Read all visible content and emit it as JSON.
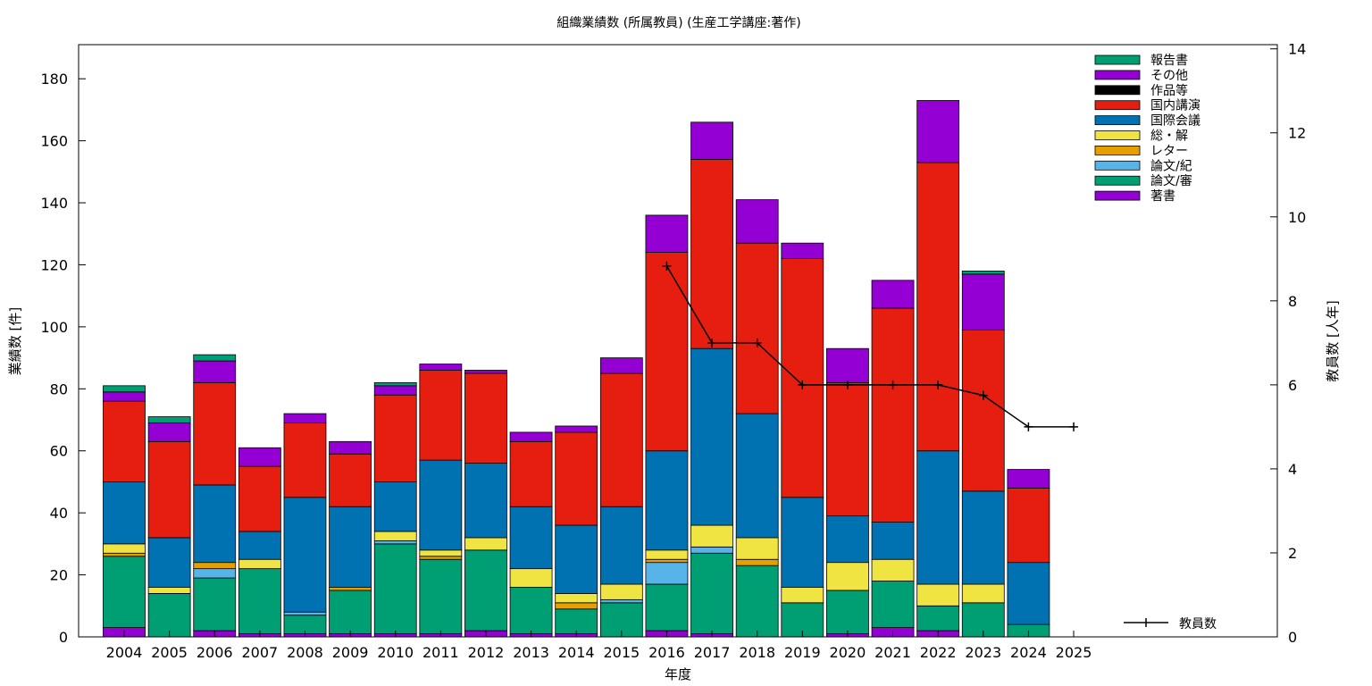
{
  "chart_data": {
    "type": "bar",
    "stacked": true,
    "title": "組織業績数 (所属教員) (生産工学講座:著作)",
    "xlabel": "年度",
    "ylabel": "業績数 [件]",
    "y2label": "教員数 [人年]",
    "ylim": [
      0,
      191
    ],
    "y2lim": [
      0,
      14.1
    ],
    "yticks": [
      0,
      20,
      40,
      60,
      80,
      100,
      120,
      140,
      160,
      180
    ],
    "y2ticks": [
      0,
      2,
      4,
      6,
      8,
      10,
      12,
      14
    ],
    "categories": [
      "2004",
      "2005",
      "2006",
      "2007",
      "2008",
      "2009",
      "2010",
      "2011",
      "2012",
      "2013",
      "2014",
      "2015",
      "2016",
      "2017",
      "2018",
      "2019",
      "2020",
      "2021",
      "2022",
      "2023",
      "2024",
      "2025"
    ],
    "legend_position": "top-right",
    "series": [
      {
        "name": "著書",
        "color": "#9400d3",
        "values": [
          3,
          0,
          2,
          1,
          1,
          1,
          1,
          1,
          2,
          1,
          1,
          0,
          2,
          1,
          0,
          0,
          1,
          3,
          2,
          0,
          0,
          0
        ]
      },
      {
        "name": "論文/審",
        "color": "#009e73",
        "values": [
          23,
          14,
          17,
          21,
          6,
          14,
          29,
          24,
          26,
          15,
          8,
          11,
          15,
          26,
          23,
          11,
          14,
          15,
          8,
          11,
          4,
          0
        ]
      },
      {
        "name": "論文/紀",
        "color": "#56b4e9",
        "values": [
          0,
          0,
          3,
          0,
          1,
          0,
          1,
          0,
          0,
          0,
          0,
          1,
          7,
          2,
          0,
          0,
          0,
          0,
          0,
          0,
          0,
          0
        ]
      },
      {
        "name": "レター",
        "color": "#e69f00",
        "values": [
          1,
          0,
          2,
          0,
          0,
          1,
          0,
          1,
          0,
          0,
          2,
          0,
          1,
          0,
          2,
          0,
          0,
          0,
          0,
          0,
          0,
          0
        ]
      },
      {
        "name": "総・解",
        "color": "#f0e442",
        "values": [
          3,
          2,
          0,
          3,
          0,
          0,
          3,
          2,
          4,
          6,
          3,
          5,
          3,
          7,
          7,
          5,
          9,
          7,
          7,
          6,
          0,
          0
        ]
      },
      {
        "name": "国際会議",
        "color": "#0072b2",
        "values": [
          20,
          16,
          25,
          9,
          37,
          26,
          16,
          29,
          24,
          20,
          22,
          25,
          32,
          57,
          40,
          29,
          15,
          12,
          43,
          30,
          20,
          0
        ]
      },
      {
        "name": "国内講演",
        "color": "#e51e10",
        "values": [
          26,
          31,
          33,
          21,
          24,
          17,
          28,
          29,
          29,
          21,
          30,
          43,
          64,
          61,
          55,
          77,
          43,
          69,
          93,
          52,
          24,
          0
        ]
      },
      {
        "name": "作品等",
        "color": "#000000",
        "values": [
          0,
          0,
          0,
          0,
          0,
          0,
          0,
          0,
          0,
          0,
          0,
          0,
          0,
          0,
          0,
          0,
          0,
          0,
          0,
          0,
          0,
          0
        ]
      },
      {
        "name": "その他",
        "color": "#9400d3",
        "values": [
          3,
          6,
          7,
          6,
          3,
          4,
          3,
          2,
          1,
          3,
          2,
          5,
          12,
          12,
          14,
          5,
          11,
          9,
          20,
          18,
          6,
          0
        ]
      },
      {
        "name": "報告書",
        "color": "#009e73",
        "values": [
          2,
          2,
          2,
          0,
          0,
          0,
          1,
          0,
          0,
          0,
          0,
          0,
          0,
          0,
          0,
          0,
          0,
          0,
          0,
          1,
          0,
          0
        ]
      }
    ],
    "line": {
      "name": "教員数",
      "color": "#000000",
      "x": [
        "2016",
        "2017",
        "2018",
        "2019",
        "2020",
        "2021",
        "2022",
        "2023",
        "2024",
        "2025"
      ],
      "values": [
        8.83,
        7.0,
        7.0,
        6.0,
        6.0,
        6.0,
        6.0,
        5.75,
        5.0,
        5.0
      ]
    }
  }
}
